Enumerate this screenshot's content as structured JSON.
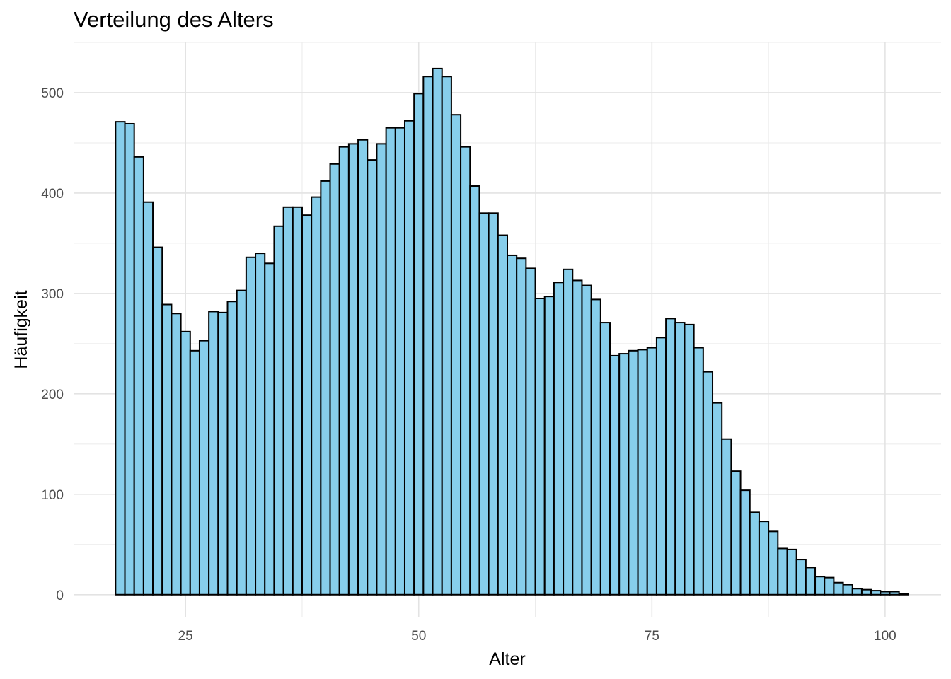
{
  "chart_data": {
    "type": "bar",
    "title": "Verteilung des Alters",
    "xlabel": "Alter",
    "ylabel": "Häufigkeit",
    "x_ticks": [
      25,
      50,
      75,
      100
    ],
    "x_tick_labels": [
      "25",
      "50",
      "75",
      "100"
    ],
    "y_ticks": [
      0,
      100,
      200,
      300,
      400,
      500
    ],
    "y_tick_labels": [
      "0",
      "100",
      "200",
      "300",
      "400",
      "500"
    ],
    "xlim": [
      13,
      106
    ],
    "ylim": [
      -22,
      550
    ],
    "grid": true,
    "legend": "none",
    "bin_width": 1,
    "fill_color": "#87CEEB",
    "edge_color": "#000000",
    "x": [
      18,
      19,
      20,
      21,
      22,
      23,
      24,
      25,
      26,
      27,
      28,
      29,
      30,
      31,
      32,
      33,
      34,
      35,
      36,
      37,
      38,
      39,
      40,
      41,
      42,
      43,
      44,
      45,
      46,
      47,
      48,
      49,
      50,
      51,
      52,
      53,
      54,
      55,
      56,
      57,
      58,
      59,
      60,
      61,
      62,
      63,
      64,
      65,
      66,
      67,
      68,
      69,
      70,
      71,
      72,
      73,
      74,
      75,
      76,
      77,
      78,
      79,
      80,
      81,
      82,
      83,
      84,
      85,
      86,
      87,
      88,
      89,
      90,
      91,
      92,
      93,
      94,
      95,
      96,
      97,
      98,
      99,
      100,
      101,
      102
    ],
    "values": [
      471,
      469,
      436,
      391,
      346,
      289,
      280,
      262,
      243,
      253,
      282,
      281,
      292,
      303,
      336,
      340,
      330,
      367,
      386,
      386,
      378,
      396,
      412,
      429,
      446,
      449,
      453,
      433,
      449,
      465,
      465,
      472,
      499,
      516,
      524,
      516,
      478,
      446,
      407,
      380,
      380,
      358,
      338,
      335,
      325,
      295,
      297,
      311,
      324,
      313,
      308,
      294,
      271,
      238,
      240,
      243,
      244,
      246,
      256,
      275,
      271,
      269,
      246,
      222,
      191,
      155,
      123,
      104,
      82,
      73,
      63,
      46,
      45,
      35,
      27,
      18,
      17,
      12,
      10,
      6,
      5,
      4,
      3,
      3,
      1
    ]
  }
}
